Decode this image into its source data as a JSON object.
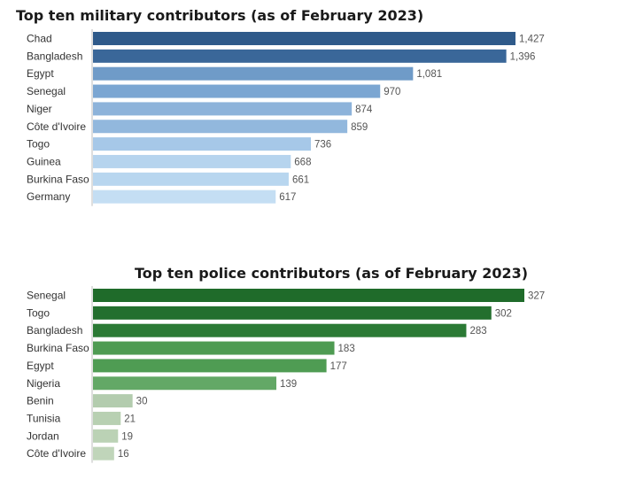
{
  "chart_data": [
    {
      "type": "bar",
      "orientation": "horizontal",
      "title": "Top ten military contributors (as of February 2023)",
      "categories": [
        "Chad",
        "Bangladesh",
        "Egypt",
        "Senegal",
        "Niger",
        "Côte d'Ivoire",
        "Togo",
        "Guinea",
        "Burkina Faso",
        "Germany"
      ],
      "values": [
        1427,
        1396,
        1081,
        970,
        874,
        859,
        736,
        668,
        661,
        617
      ],
      "value_labels": [
        "1,427",
        "1,396",
        "1,081",
        "970",
        "874",
        "859",
        "736",
        "668",
        "661",
        "617"
      ],
      "colors": [
        "#2f5a8a",
        "#3a6799",
        "#6f9bc8",
        "#7ba6d2",
        "#8db3da",
        "#92b8dd",
        "#a6c8e8",
        "#b6d4ee",
        "#b8d6ef",
        "#c4def3"
      ],
      "xlim": [
        0,
        1427
      ],
      "grid": false
    },
    {
      "type": "bar",
      "orientation": "horizontal",
      "title": "Top ten police contributors (as of February 2023)",
      "categories": [
        "Senegal",
        "Togo",
        "Bangladesh",
        "Burkina Faso",
        "Egypt",
        "Nigeria",
        "Benin",
        "Tunisia",
        "Jordan",
        "Côte d'Ivoire"
      ],
      "values": [
        327,
        302,
        283,
        183,
        177,
        139,
        30,
        21,
        19,
        16
      ],
      "value_labels": [
        "327",
        "302",
        "283",
        "183",
        "177",
        "139",
        "30",
        "21",
        "19",
        "16"
      ],
      "colors": [
        "#1f6b2a",
        "#236f2e",
        "#2b7a35",
        "#4e9b52",
        "#4f9c53",
        "#63a866",
        "#b3ccae",
        "#b8d0b2",
        "#bbd2b5",
        "#c0d5ba"
      ],
      "xlim": [
        0,
        327
      ],
      "grid": false
    }
  ]
}
